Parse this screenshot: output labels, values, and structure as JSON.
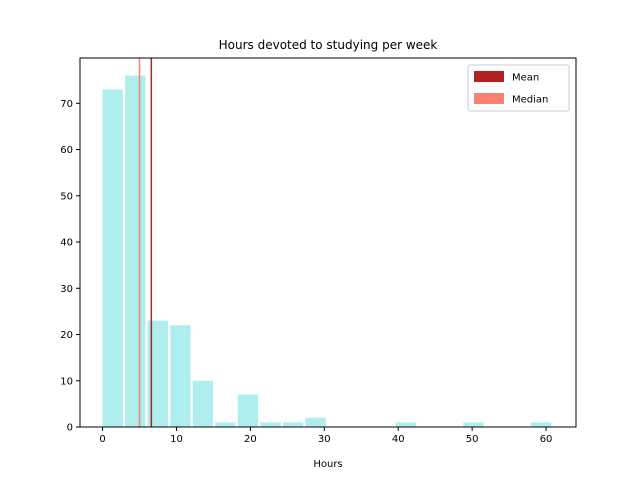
{
  "chart_data": {
    "type": "bar",
    "title": "Hours devoted to studying per week",
    "xlabel": "Hours",
    "ylabel": "",
    "xlim": [
      -3.05,
      64.05
    ],
    "ylim": [
      0,
      79.8
    ],
    "xticks": [
      0,
      10,
      20,
      30,
      40,
      50,
      60
    ],
    "yticks": [
      0,
      10,
      20,
      30,
      40,
      50,
      60,
      70
    ],
    "bar_color": "#afeeee",
    "bars": [
      {
        "x0": 0.0,
        "x1": 3.05,
        "value": 73
      },
      {
        "x0": 3.05,
        "x1": 6.1,
        "value": 76
      },
      {
        "x0": 6.1,
        "x1": 9.15,
        "value": 23
      },
      {
        "x0": 9.15,
        "x1": 12.2,
        "value": 22
      },
      {
        "x0": 12.2,
        "x1": 15.25,
        "value": 10
      },
      {
        "x0": 15.25,
        "x1": 18.3,
        "value": 1
      },
      {
        "x0": 18.3,
        "x1": 21.35,
        "value": 7
      },
      {
        "x0": 21.35,
        "x1": 24.4,
        "value": 1
      },
      {
        "x0": 24.4,
        "x1": 27.45,
        "value": 1
      },
      {
        "x0": 27.45,
        "x1": 30.5,
        "value": 2
      },
      {
        "x0": 39.65,
        "x1": 42.7,
        "value": 1
      },
      {
        "x0": 48.8,
        "x1": 51.85,
        "value": 1
      },
      {
        "x0": 57.95,
        "x1": 61.0,
        "value": 1
      }
    ],
    "mean": 6.6,
    "median": 5.0,
    "mean_color": "#b22222",
    "median_color": "#fa8072",
    "legend": {
      "position": "top-right",
      "entries": [
        {
          "label": "Mean",
          "color": "#b22222"
        },
        {
          "label": "Median",
          "color": "#fa8072"
        }
      ]
    },
    "grid": false
  }
}
